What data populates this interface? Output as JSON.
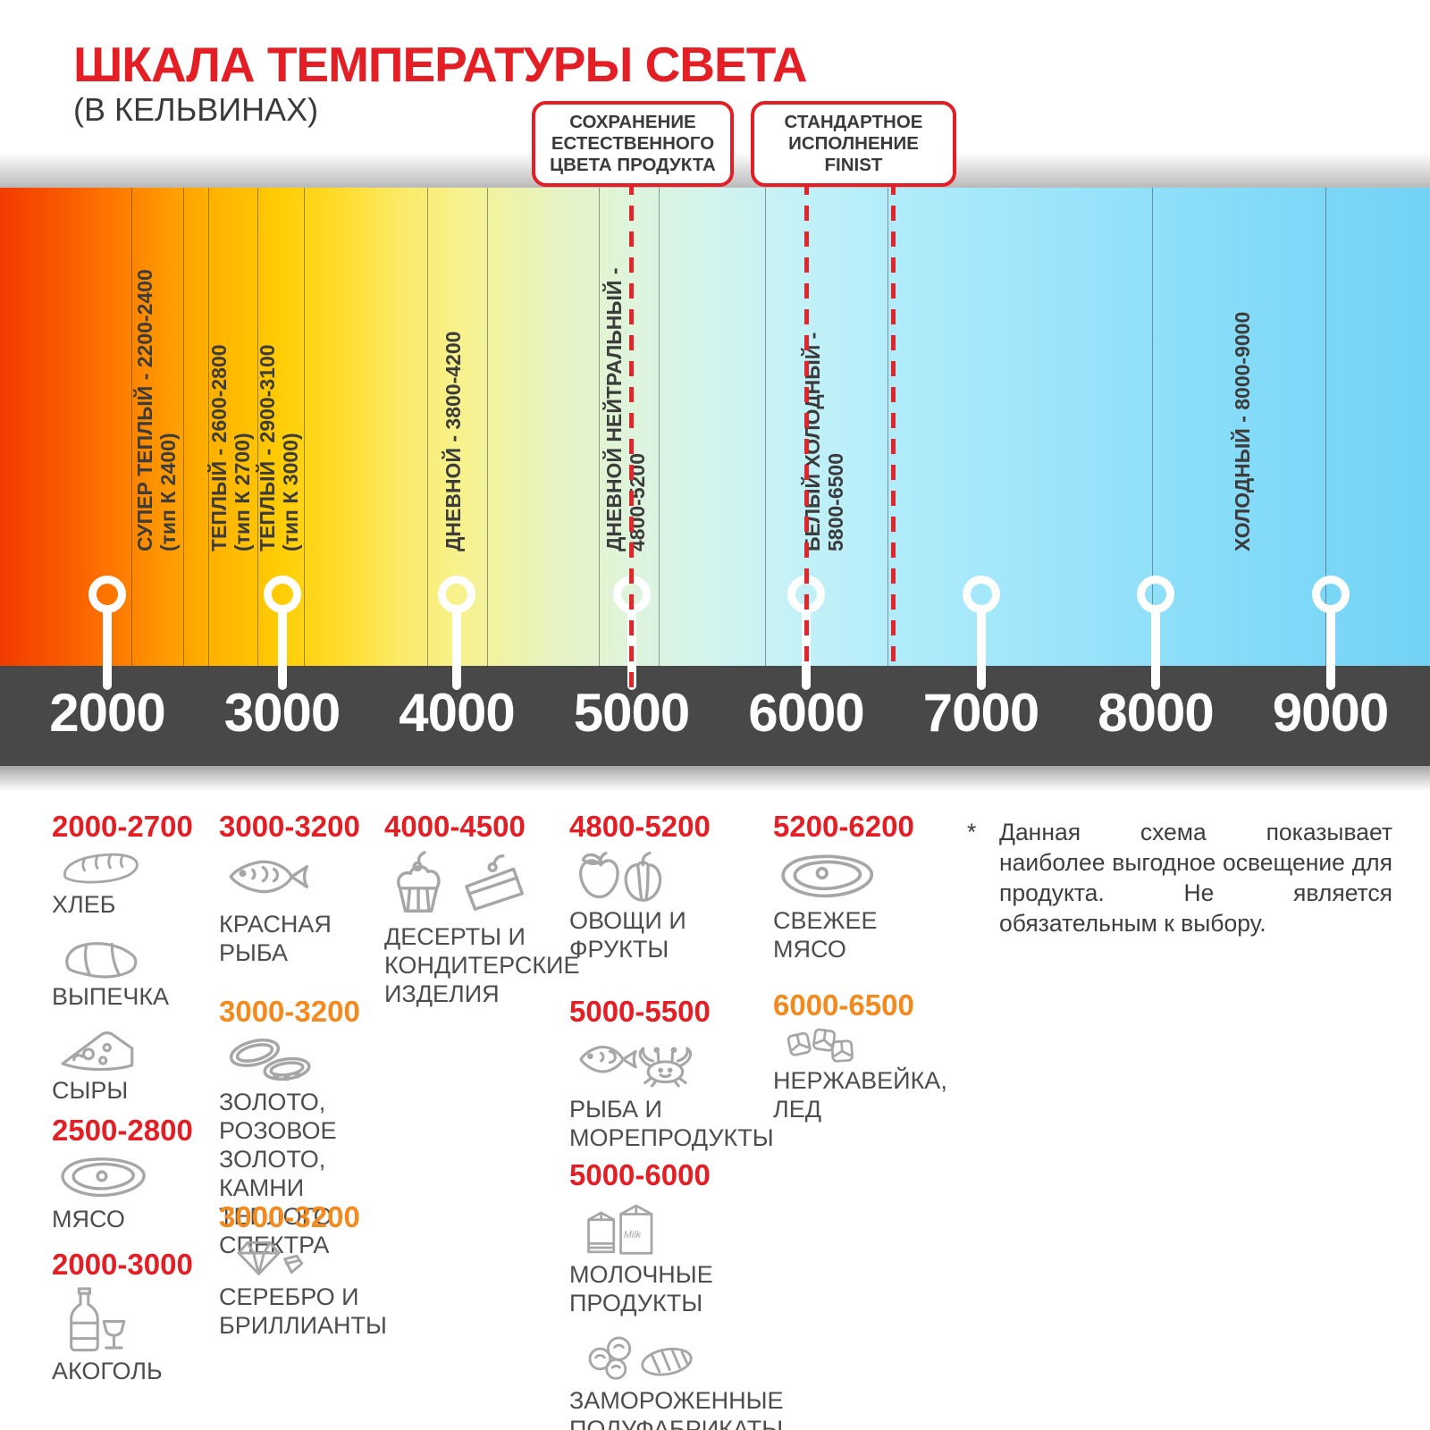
{
  "header": {
    "title": "ШКАЛА ТЕМПЕРАТУРЫ СВЕТА",
    "subtitle": "(В КЕЛЬВИНАХ)"
  },
  "colors": {
    "accent_red": "#E31E24",
    "accent_orange": "#F28A1E",
    "axis_band": "#484848",
    "icon_gray": "#A6A6A6"
  },
  "callouts": [
    {
      "text": "СОХРАНЕНИЕ\nЕСТЕСТВЕННОГО\nЦВЕТА ПРОДУКТА",
      "pointer_kelvin": [
        5000
      ]
    },
    {
      "text": "СТАНДАРТНОЕ\nИСПОЛНЕНИЕ\nFINIST",
      "pointer_kelvin": [
        6000,
        6500
      ]
    }
  ],
  "scale": {
    "unit": "К",
    "ticks": [
      "2000",
      "3000",
      "4000",
      "5000",
      "6000",
      "7000",
      "8000",
      "9000"
    ],
    "zones": [
      {
        "label": "СУПЕР ТЕПЛЫЙ - 2200-2400",
        "sub": "(тип К 2400)"
      },
      {
        "label": "ТЕПЛЫЙ - 2600-2800",
        "sub": "(тип К 2700)"
      },
      {
        "label": "ТЕПЛЫЙ - 2900-3100",
        "sub": "(тип К 3000)"
      },
      {
        "label": "ДНЕВНОЙ - 3800-4200",
        "sub": ""
      },
      {
        "label": "ДНЕВНОЙ НЕЙТРАЛЬНЫЙ -",
        "sub": "4800-5200"
      },
      {
        "label": "БЕЛЫЙ ХОЛОДНЫЙ -",
        "sub": "5800-6500"
      },
      {
        "label": "ХОЛОДНЫЙ - 8000-9000",
        "sub": ""
      }
    ]
  },
  "columns": [
    {
      "groups": [
        {
          "range": "2000-2700",
          "range_color": "red",
          "items": [
            {
              "icon": "bread-icon",
              "label": "ХЛЕБ"
            },
            {
              "icon": "croissant-icon",
              "label": "ВЫПЕЧКА"
            },
            {
              "icon": "cheese-icon",
              "label": "СЫРЫ"
            }
          ]
        },
        {
          "range": "2500-2800",
          "range_color": "red",
          "items": [
            {
              "icon": "meat-icon",
              "label": "МЯСО"
            }
          ]
        },
        {
          "range": "2000-3000",
          "range_color": "red",
          "items": [
            {
              "icon": "alcohol-icon",
              "label": "АКОГОЛЬ"
            }
          ]
        }
      ]
    },
    {
      "groups": [
        {
          "range": "3000-3200",
          "range_color": "red",
          "items": [
            {
              "icon": "fish-icon",
              "label": "КРАСНАЯ\nРЫБА"
            }
          ]
        },
        {
          "range": "3000-3200",
          "range_color": "orange",
          "items": [
            {
              "icon": "rings-icon",
              "label": "ЗОЛОТО,\nРОЗОВОЕ ЗОЛОТО,\nКАМНИ ТЕПЛОГО\nСПЕКТРА"
            }
          ]
        },
        {
          "range": "3000-3200",
          "range_color": "orange",
          "items": [
            {
              "icon": "diamond-icon",
              "label": "СЕРЕБРО И\nБРИЛЛИАНТЫ"
            }
          ]
        }
      ]
    },
    {
      "groups": [
        {
          "range": "4000-4500",
          "range_color": "red",
          "items": [
            {
              "icon": "desserts-icon",
              "label": "ДЕСЕРТЫ И\nКОНДИТЕРСКИЕ\nИЗДЕЛИЯ"
            }
          ]
        }
      ]
    },
    {
      "groups": [
        {
          "range": "4800-5200",
          "range_color": "red",
          "items": [
            {
              "icon": "produce-icon",
              "label": "ОВОЩИ И\nФРУКТЫ"
            }
          ]
        },
        {
          "range": "5000-5500",
          "range_color": "red",
          "items": [
            {
              "icon": "seafood-icon",
              "label": "РЫБА И\nМОРЕПРОДУКТЫ"
            }
          ]
        },
        {
          "range": "5000-6000",
          "range_color": "red",
          "items": [
            {
              "icon": "milk-icon",
              "label": "МОЛОЧНЫЕ ПРОДУКТЫ"
            },
            {
              "icon": "frozen-icon",
              "label": "ЗАМОРОЖЕННЫЕ\nПОЛУФАБРИКАТЫ"
            }
          ]
        }
      ]
    },
    {
      "groups": [
        {
          "range": "5200-6200",
          "range_color": "red",
          "items": [
            {
              "icon": "fresh-meat-icon",
              "label": "СВЕЖЕЕ\nМЯСО"
            }
          ]
        },
        {
          "range": "6000-6500",
          "range_color": "orange",
          "items": [
            {
              "icon": "ice-icon",
              "label": "НЕРЖАВЕЙКА,\nЛЕД"
            }
          ]
        }
      ]
    }
  ],
  "footnote": {
    "mark": "*",
    "text": "Данная схема показывает наиболее выгодное освещение для продукта. Не является обязательным к выбору."
  }
}
